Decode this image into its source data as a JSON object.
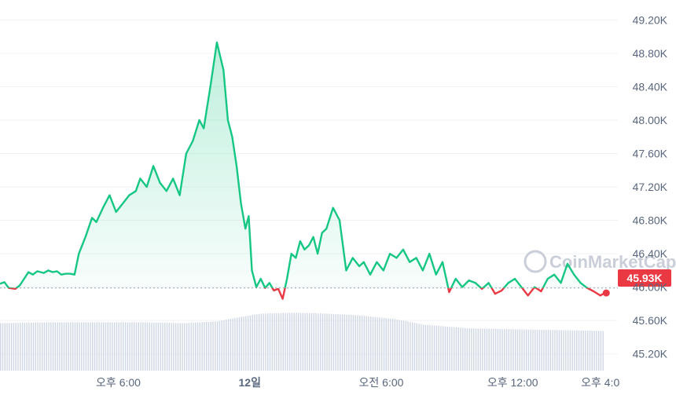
{
  "watermark": "CoinMarketCap",
  "colors": {
    "up": "#16c784",
    "down": "#ea3943",
    "grid": "#eff2f5",
    "volume": "#cfd6e4",
    "axis_text": "#58667e"
  },
  "chart_data": {
    "type": "area",
    "ylim": [
      45000,
      49400
    ],
    "y_ticks": [
      "49.20K",
      "48.80K",
      "48.40K",
      "48.00K",
      "47.60K",
      "47.20K",
      "46.80K",
      "46.40K",
      "46.00K",
      "45.60K",
      "45.20K"
    ],
    "y_tick_values": [
      49200,
      48800,
      48400,
      48000,
      47600,
      47200,
      46800,
      46400,
      46000,
      45600,
      45200
    ],
    "x_ticks": [
      "오후 6:00",
      "12일",
      "오전 6:00",
      "오후 12:00",
      "오후 4:0"
    ],
    "x_tick_hours": [
      2,
      8,
      14,
      20,
      24
    ],
    "x_range_hours": [
      -3.4,
      24.8
    ],
    "baseline": 45990,
    "current_price_label": "45.93K",
    "current_price": 45930,
    "price_series": {
      "x_hours": [
        -3.4,
        -3.2,
        -3.0,
        -2.7,
        -2.5,
        -2.3,
        -2.1,
        -1.9,
        -1.7,
        -1.4,
        -1.2,
        -1.0,
        -0.8,
        -0.6,
        -0.4,
        -0.2,
        0.0,
        0.2,
        0.5,
        0.8,
        1.0,
        1.3,
        1.6,
        1.9,
        2.2,
        2.5,
        2.8,
        3.0,
        3.3,
        3.6,
        3.9,
        4.2,
        4.5,
        4.8,
        5.1,
        5.4,
        5.7,
        5.9,
        6.2,
        6.5,
        6.8,
        7.0,
        7.2,
        7.4,
        7.6,
        7.8,
        7.95,
        8.1,
        8.3,
        8.5,
        8.7,
        8.9,
        9.1,
        9.3,
        9.5,
        9.7,
        9.9,
        10.1,
        10.3,
        10.5,
        10.7,
        10.9,
        11.1,
        11.3,
        11.5,
        11.8,
        12.1,
        12.4,
        12.7,
        13.0,
        13.2,
        13.5,
        13.8,
        14.1,
        14.4,
        14.7,
        15.0,
        15.3,
        15.6,
        15.9,
        16.2,
        16.5,
        16.8,
        17.1,
        17.4,
        17.7,
        18.0,
        18.3,
        18.6,
        18.9,
        19.2,
        19.5,
        19.8,
        20.1,
        20.4,
        20.7,
        21.0,
        21.3,
        21.6,
        21.9,
        22.2,
        22.5,
        22.8,
        23.1,
        23.4,
        23.7,
        24.0,
        24.2
      ],
      "y": [
        46040,
        46060,
        45990,
        45980,
        46020,
        46100,
        46180,
        46150,
        46190,
        46170,
        46200,
        46180,
        46190,
        46150,
        46160,
        46160,
        46150,
        46400,
        46600,
        46830,
        46780,
        46950,
        47100,
        46900,
        47000,
        47100,
        47150,
        47300,
        47200,
        47450,
        47250,
        47150,
        47300,
        47100,
        47600,
        47750,
        48000,
        47900,
        48400,
        48930,
        48600,
        48000,
        47800,
        47450,
        47000,
        46700,
        46850,
        46200,
        46000,
        46100,
        45990,
        46050,
        45960,
        45980,
        45860,
        46100,
        46400,
        46350,
        46550,
        46450,
        46500,
        46600,
        46400,
        46650,
        46700,
        46950,
        46800,
        46200,
        46350,
        46250,
        46300,
        46150,
        46300,
        46200,
        46400,
        46350,
        46450,
        46300,
        46350,
        46200,
        46400,
        46150,
        46300,
        45940,
        46100,
        46000,
        46080,
        46050,
        45980,
        46050,
        45920,
        45960,
        46050,
        46100,
        46000,
        45900,
        46000,
        45950,
        46100,
        46150,
        46050,
        46280,
        46150,
        46050,
        45990,
        45950,
        45900,
        45930
      ]
    },
    "volume_series": {
      "note_unit": "relative",
      "x_hours": [
        -3.4,
        -1.0,
        1.0,
        3.0,
        5.0,
        6.5,
        7.5,
        8.5,
        10.0,
        11.5,
        13.0,
        14.5,
        16.0,
        18.0,
        20.0,
        22.0,
        24.2
      ],
      "y": [
        0.55,
        0.56,
        0.56,
        0.56,
        0.55,
        0.57,
        0.62,
        0.66,
        0.67,
        0.66,
        0.64,
        0.6,
        0.53,
        0.49,
        0.48,
        0.47,
        0.46
      ]
    }
  }
}
